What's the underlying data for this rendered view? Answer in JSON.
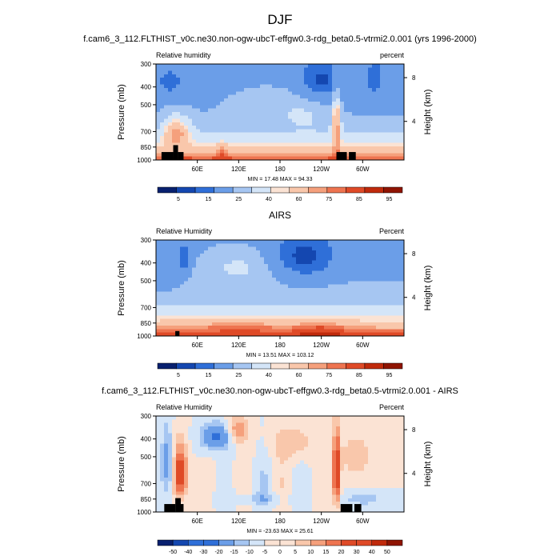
{
  "page": {
    "title": "DJF"
  },
  "colors": {
    "palette": [
      "#08206f",
      "#1447b0",
      "#2f6fd8",
      "#6b9ee8",
      "#a6c6f2",
      "#d4e5f8",
      "#fbe3d4",
      "#f9c7ab",
      "#f5a07c",
      "#ee7450",
      "#df4a27",
      "#c02a0c",
      "#8f1402"
    ],
    "terrain": "#000000"
  },
  "chart_data": [
    {
      "type": "heatmap",
      "title": "f.cam6_3_112.FLTHIST_v0c.ne30.non-ogw-ubcT-effgw0.3-rdg_beta0.5-vtrmi2.0.001 (yrs 1996-2000)",
      "left_label": "Relative humidity",
      "right_label": "percent",
      "ylabel": "Pressure (mb)",
      "y2label": "Height (km)",
      "y_ticks": [
        300,
        400,
        500,
        700,
        850,
        1000
      ],
      "y2_ticks": [
        8,
        4
      ],
      "x_ticks": [
        "60E",
        "120E",
        "180",
        "120W",
        "60W"
      ],
      "x_tick_values": [
        60,
        120,
        180,
        240,
        300
      ],
      "xlim": [
        0,
        360
      ],
      "ylim": [
        1000,
        300
      ],
      "stats": "MIN = 17.48  MAX = 94.33",
      "colorbar": {
        "levels": [
          "5",
          "15",
          "25",
          "40",
          "60",
          "75",
          "85",
          "95"
        ]
      }
    },
    {
      "type": "heatmap",
      "title": "AIRS",
      "left_label": "Relative Humidity",
      "right_label": "Percent",
      "ylabel": "Pressure (mb)",
      "y2label": "Height (km)",
      "y_ticks": [
        300,
        400,
        500,
        700,
        850,
        1000
      ],
      "y2_ticks": [
        8,
        4
      ],
      "x_ticks": [
        "60E",
        "120E",
        "180",
        "120W",
        "60W"
      ],
      "x_tick_values": [
        60,
        120,
        180,
        240,
        300
      ],
      "xlim": [
        0,
        360
      ],
      "ylim": [
        1000,
        300
      ],
      "stats": "MIN = 13.51  MAX = 103.12",
      "colorbar": {
        "levels": [
          "5",
          "15",
          "25",
          "40",
          "60",
          "75",
          "85",
          "95"
        ]
      }
    },
    {
      "type": "heatmap",
      "title": "f.cam6_3_112.FLTHIST_v0c.ne30.non-ogw-ubcT-effgw0.3-rdg_beta0.5-vtrmi2.0.001 - AIRS",
      "left_label": "Relative Humidity",
      "right_label": "Percent",
      "ylabel": "Pressure (mb)",
      "y2label": "Height (km)",
      "y_ticks": [
        300,
        400,
        500,
        700,
        850,
        1000
      ],
      "y2_ticks": [
        8,
        4
      ],
      "x_ticks": [
        "60E",
        "120E",
        "180",
        "120W",
        "60W"
      ],
      "x_tick_values": [
        60,
        120,
        180,
        240,
        300
      ],
      "xlim": [
        0,
        360
      ],
      "ylim": [
        1000,
        300
      ],
      "stats": "MIN = -23.63  MAX = 25.61",
      "colorbar": {
        "levels": [
          "-50",
          "-40",
          "-30",
          "-20",
          "-15",
          "-10",
          "-5",
          "0",
          "5",
          "10",
          "15",
          "20",
          "30",
          "40",
          "50"
        ]
      }
    }
  ]
}
